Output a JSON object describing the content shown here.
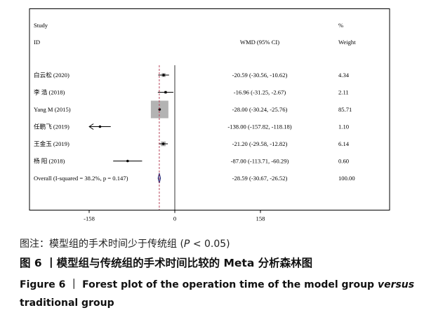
{
  "chart_data": {
    "type": "forest",
    "header": {
      "study_line1": "Study",
      "study_line2": "ID",
      "effect_label": "WMD (95% CI)",
      "weight_line1": "%",
      "weight_line2": "Weight"
    },
    "xlim": [
      -180,
      160
    ],
    "ticks": [
      {
        "value": -158,
        "label": "-158"
      },
      {
        "value": 0,
        "label": "0"
      },
      {
        "value": 158,
        "label": "158"
      }
    ],
    "overall_effect": -28.59,
    "studies": [
      {
        "id": "白云松 (2020)",
        "est": -20.59,
        "lo": -30.56,
        "hi": -10.62,
        "ci_text": "-20.59 (-30.56, -10.62)",
        "weight": "4.34",
        "w": 4.34
      },
      {
        "id": "李  浩 (2018)",
        "est": -16.96,
        "lo": -31.25,
        "hi": -2.67,
        "ci_text": "-16.96 (-31.25, -2.67)",
        "weight": "2.11",
        "w": 2.11
      },
      {
        "id": "Yang M (2015)",
        "est": -28.0,
        "lo": -30.24,
        "hi": -25.76,
        "ci_text": "-28.00 (-30.24, -25.76)",
        "weight": "85.71",
        "w": 85.71
      },
      {
        "id": "任鹏飞 (2019)",
        "est": -138.0,
        "lo": -157.82,
        "hi": -118.18,
        "ci_text": "-138.00 (-157.82, -118.18)",
        "weight": "1.10",
        "w": 1.1,
        "arrow_left": true
      },
      {
        "id": "王金玉 (2019)",
        "est": -21.2,
        "lo": -29.58,
        "hi": -12.82,
        "ci_text": "-21.20 (-29.58, -12.82)",
        "weight": "6.14",
        "w": 6.14
      },
      {
        "id": "杨  阳 (2018)",
        "est": -87.0,
        "lo": -113.71,
        "hi": -60.29,
        "ci_text": "-87.00 (-113.71, -60.29)",
        "weight": "0.60",
        "w": 0.6
      }
    ],
    "overall": {
      "id": "Overall  (I-squared = 38.2%, p = 0.147)",
      "est": -28.59,
      "lo": -30.67,
      "hi": -26.52,
      "ci_text": "-28.59 (-30.67, -26.52)",
      "weight": "100.00"
    },
    "colors": {
      "square": "#b3b3b3",
      "diamond": "#1f2a7a",
      "dashed_line": "#b0304a",
      "line": "#000000"
    }
  },
  "caption": {
    "note_prefix": "图注：模型组的手术时间少于传统组 (",
    "note_p": "P",
    "note_suffix": " < 0.05)",
    "cn": "图 6 丨模型组与传统组的手术时间比较的 Meta 分析森林图",
    "en_part1": "Figure 6 ｜ Forest plot of the operation time of the model group ",
    "en_versus": "versus",
    "en_part2": " traditional group"
  }
}
